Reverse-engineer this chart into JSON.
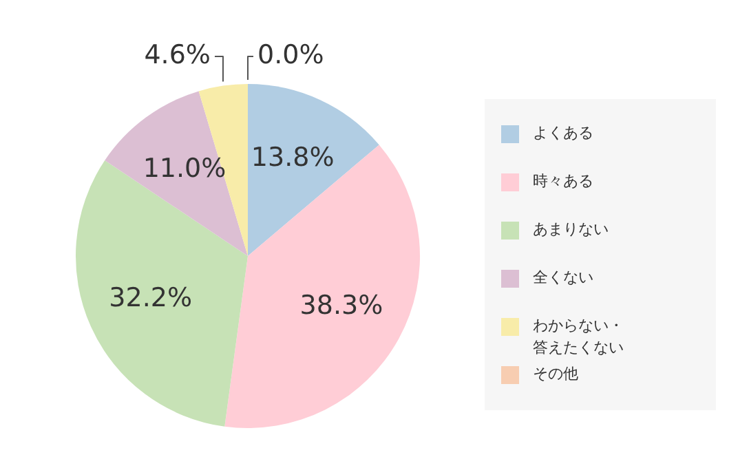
{
  "chart_data": {
    "type": "pie",
    "categories": [
      "よくある",
      "時々ある",
      "あまりない",
      "全くない",
      "わからない・答えたくない",
      "その他"
    ],
    "values": [
      13.8,
      38.3,
      32.2,
      11.0,
      4.6,
      0.0
    ],
    "colors": [
      "#b1cde3",
      "#ffcdd6",
      "#c7e2b6",
      "#dcbfd3",
      "#f8eca9",
      "#f7cdb1"
    ],
    "value_labels": [
      "13.8%",
      "38.3%",
      "32.2%",
      "11.0%",
      "4.6%",
      "0.0%"
    ],
    "legend": "right"
  }
}
